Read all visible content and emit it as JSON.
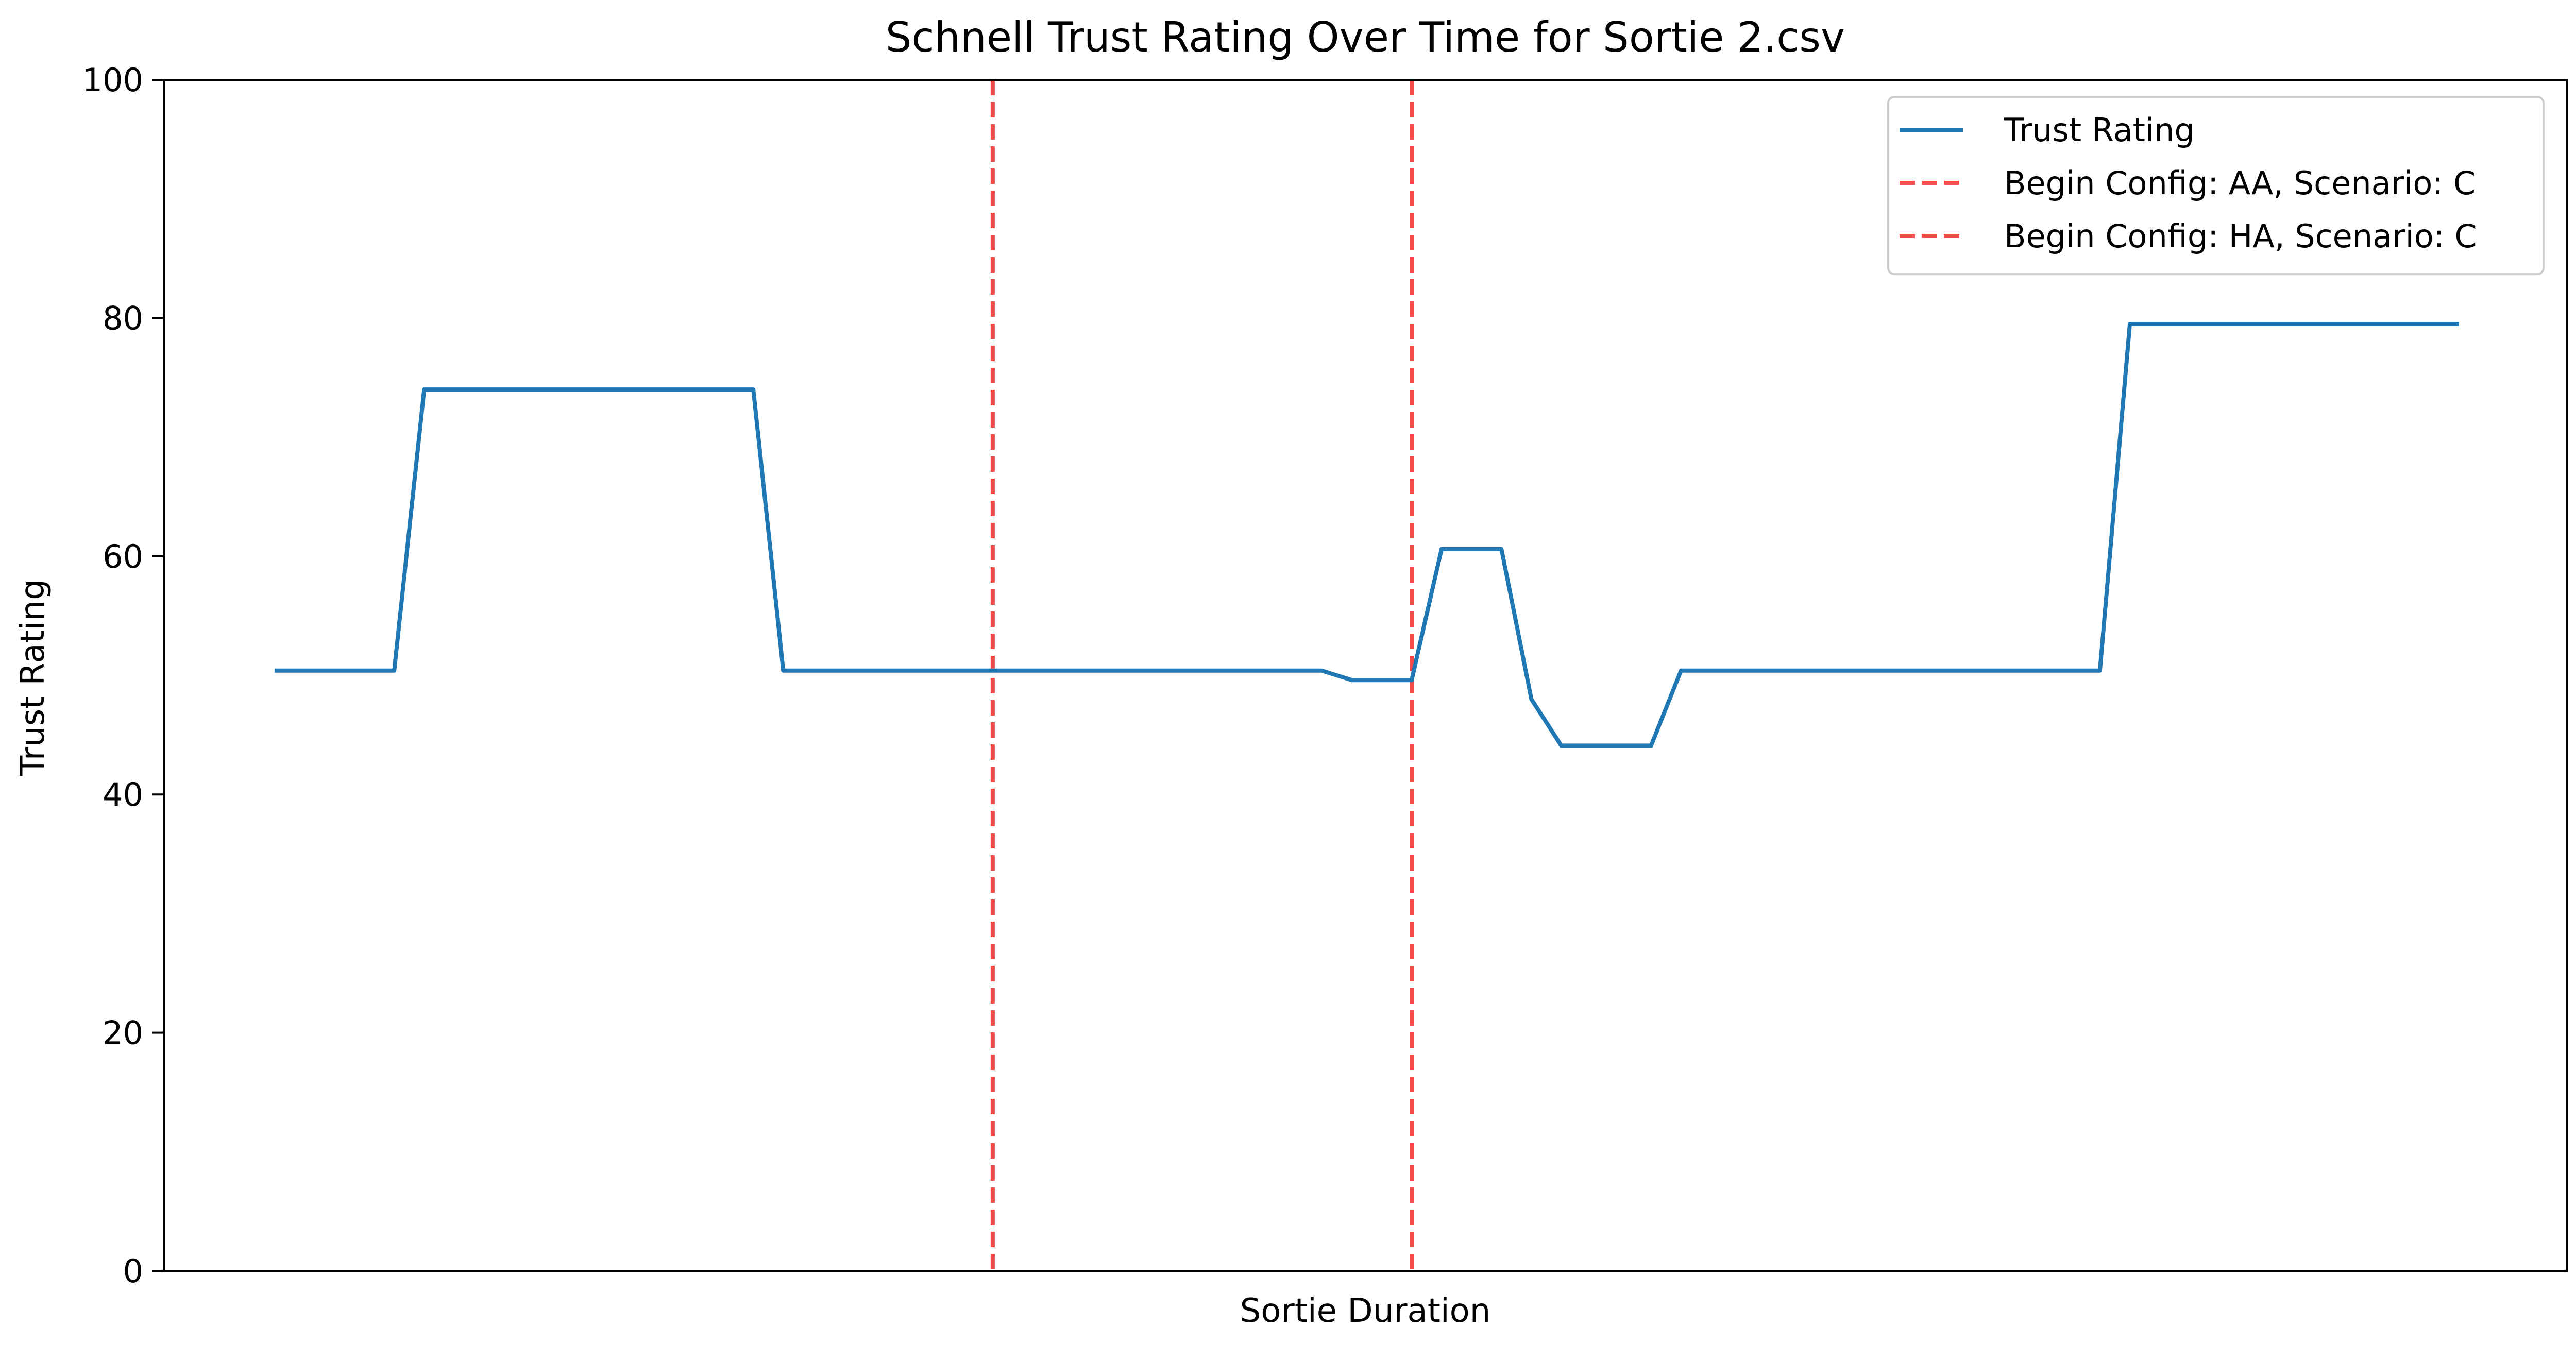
{
  "chart_data": {
    "type": "line",
    "title": "Schnell Trust Rating Over Time for Sortie 2.csv",
    "xlabel": "Sortie Duration",
    "ylabel": "Trust Rating",
    "ylim": [
      0,
      100
    ],
    "yticks": [
      0,
      20,
      40,
      60,
      80,
      100
    ],
    "ytick_labels": [
      "0",
      "20",
      "40",
      "60",
      "80",
      "100"
    ],
    "xticks_visible": false,
    "grid": false,
    "legend_position": "top-right",
    "series": [
      {
        "name": "Trust Rating",
        "color": "#1f77b4",
        "x": [
          0,
          4,
          5,
          16,
          17,
          35,
          36,
          37,
          38,
          39,
          40,
          41,
          42,
          43,
          44,
          45,
          46,
          47,
          61,
          62,
          63,
          64,
          65,
          66,
          72,
          73
        ],
        "y": [
          50.4,
          50.4,
          74.0,
          74.0,
          50.4,
          50.4,
          49.6,
          49.6,
          49.6,
          60.6,
          60.6,
          60.6,
          48.0,
          44.1,
          44.1,
          44.1,
          44.1,
          50.4,
          50.4,
          79.5,
          79.5,
          79.5,
          79.5,
          79.5,
          79.5,
          79.5
        ]
      }
    ],
    "vlines": [
      {
        "name": "Begin Config: AA, Scenario: C",
        "x": 24,
        "color": "#f44a4a",
        "style": "dashed"
      },
      {
        "name": "Begin Config: HA, Scenario: C",
        "x": 38,
        "color": "#f44a4a",
        "style": "dashed"
      }
    ],
    "xlim": [
      -3.7,
      76.6
    ]
  }
}
